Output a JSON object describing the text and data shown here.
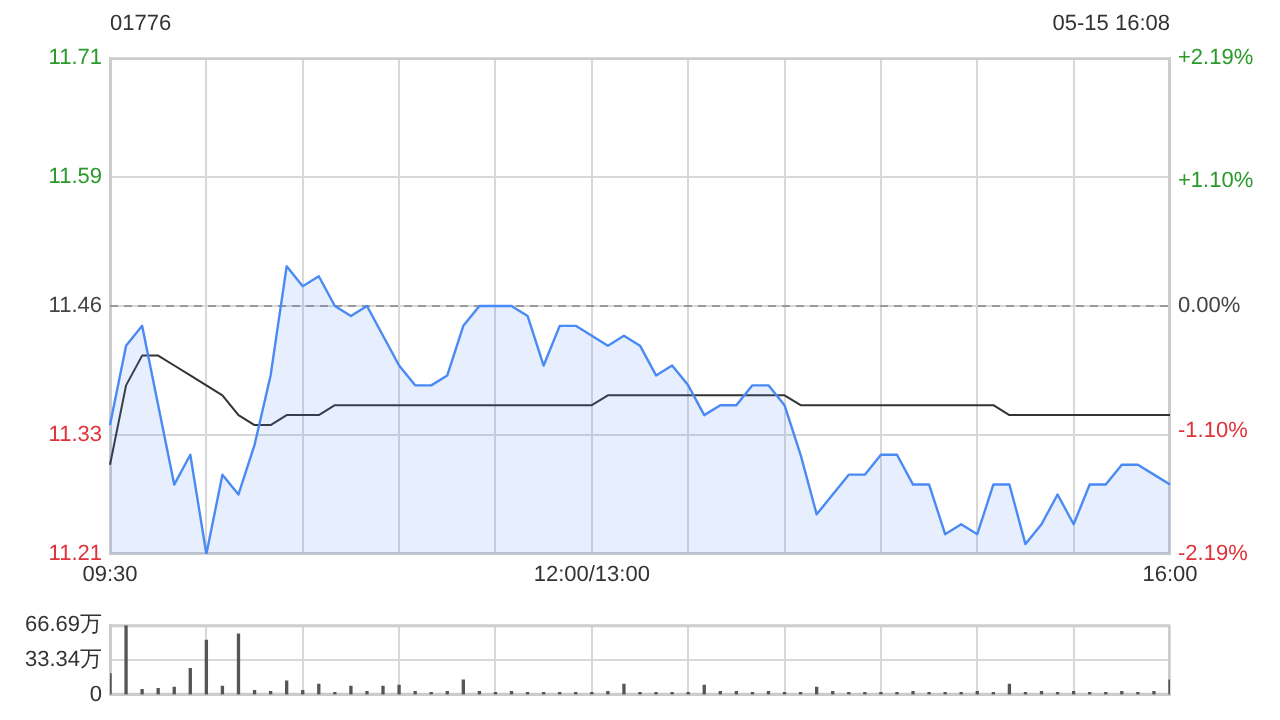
{
  "chart_data": [
    {
      "type": "area",
      "title": "01776",
      "annotations": [
        "05-15 16:08"
      ],
      "categories": [
        "09:30",
        null,
        null,
        null,
        null,
        null,
        null,
        null,
        null,
        null,
        null,
        null,
        null,
        null,
        null,
        null,
        null,
        null,
        null,
        null,
        null,
        null,
        null,
        null,
        null,
        null,
        null,
        null,
        null,
        null,
        "12:00/13:00",
        null,
        null,
        null,
        null,
        null,
        null,
        null,
        null,
        null,
        null,
        null,
        null,
        null,
        null,
        null,
        null,
        null,
        null,
        null,
        null,
        null,
        null,
        null,
        null,
        null,
        null,
        null,
        null,
        null,
        null,
        null,
        null,
        null,
        null,
        null,
        "16:00"
      ],
      "series": [
        {
          "type": "area",
          "color": "#4a8af4",
          "values": [
            11.34,
            11.42,
            11.44,
            11.36,
            11.28,
            11.31,
            11.21,
            11.29,
            11.27,
            11.32,
            11.39,
            11.5,
            11.48,
            11.49,
            11.46,
            11.45,
            11.46,
            11.43,
            11.4,
            11.38,
            11.38,
            11.39,
            11.44,
            11.46,
            11.46,
            11.46,
            11.45,
            11.4,
            11.44,
            11.44,
            11.43,
            11.42,
            11.43,
            11.42,
            11.39,
            11.4,
            11.38,
            11.35,
            11.36,
            11.36,
            11.38,
            11.38,
            11.36,
            11.31,
            11.25,
            11.27,
            11.29,
            11.29,
            11.31,
            11.31,
            11.28,
            11.28,
            11.23,
            11.24,
            11.23,
            11.28,
            11.28,
            11.22,
            11.24,
            11.27,
            11.24,
            11.28,
            11.28,
            11.3,
            11.3,
            11.29,
            11.28
          ]
        },
        {
          "type": "line",
          "color": "#333333",
          "values": [
            11.3,
            11.38,
            11.41,
            11.41,
            11.4,
            11.39,
            11.38,
            11.37,
            11.35,
            11.34,
            11.34,
            11.35,
            11.35,
            11.35,
            11.36,
            11.36,
            11.36,
            11.36,
            11.36,
            11.36,
            11.36,
            11.36,
            11.36,
            11.36,
            11.36,
            11.36,
            11.36,
            11.36,
            11.36,
            11.36,
            11.36,
            11.37,
            11.37,
            11.37,
            11.37,
            11.37,
            11.37,
            11.37,
            11.37,
            11.37,
            11.37,
            11.37,
            11.37,
            11.36,
            11.36,
            11.36,
            11.36,
            11.36,
            11.36,
            11.36,
            11.36,
            11.36,
            11.36,
            11.36,
            11.36,
            11.36,
            11.35,
            11.35,
            11.35,
            11.35,
            11.35,
            11.35,
            11.35,
            11.35,
            11.35,
            11.35,
            11.35
          ]
        }
      ],
      "ylim": [
        11.21,
        11.71
      ],
      "yticks": [
        11.21,
        11.33,
        11.46,
        11.59,
        11.71
      ],
      "y2lim": [
        -2.19,
        2.19
      ],
      "y2ticks": [
        {
          "value": -2.19,
          "label": "-2.19%"
        },
        {
          "value": -1.1,
          "label": "-1.10%"
        },
        {
          "value": 0,
          "label": "0.00%"
        },
        {
          "value": 1.1,
          "label": "+1.10%"
        },
        {
          "value": 2.19,
          "label": "+2.19%"
        }
      ],
      "ref_lines": [
        {
          "axis": "y",
          "value": 11.46,
          "color": "#999999",
          "line_style": "dashed"
        }
      ],
      "grid": true,
      "legend": false
    },
    {
      "type": "bar",
      "color": "#555555",
      "categories": [
        null,
        null,
        null,
        null,
        null,
        null,
        null,
        null,
        null,
        null,
        null,
        null,
        null,
        null,
        null,
        null,
        null,
        null,
        null,
        null,
        null,
        null,
        null,
        null,
        null,
        null,
        null,
        null,
        null,
        null,
        null,
        null,
        null,
        null,
        null,
        null,
        null,
        null,
        null,
        null,
        null,
        null,
        null,
        null,
        null,
        null,
        null,
        null,
        null,
        null,
        null,
        null,
        null,
        null,
        null,
        null,
        null,
        null,
        null,
        null,
        null,
        null,
        null,
        null,
        null,
        null,
        null
      ],
      "values": [
        20,
        66,
        5,
        6,
        7,
        25,
        52,
        8,
        58,
        4,
        3,
        13,
        4,
        10,
        2,
        8,
        3,
        8,
        9,
        3,
        2,
        3,
        14,
        3,
        2,
        3,
        2,
        2,
        2,
        2,
        2,
        3,
        10,
        2,
        2,
        2,
        2,
        9,
        3,
        3,
        2,
        3,
        2,
        2,
        7,
        3,
        2,
        2,
        2,
        2,
        3,
        2,
        2,
        2,
        3,
        2,
        10,
        2,
        3,
        2,
        3,
        2,
        2,
        3,
        2,
        3,
        14
      ],
      "ylim": [
        0,
        66.69
      ],
      "yticks": [
        0,
        {
          "value": 33.34,
          "label": "33.34万"
        },
        {
          "value": 66.69,
          "label": "66.69万"
        }
      ],
      "grid": true,
      "legend": false,
      "tick_labels": "y"
    }
  ]
}
